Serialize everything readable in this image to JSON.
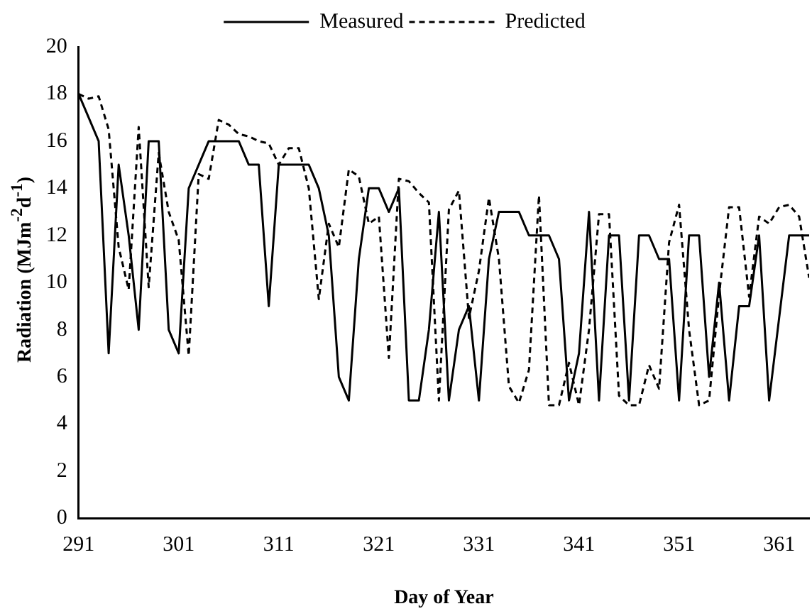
{
  "chart_data": {
    "type": "line",
    "xlabel": "Day of Year",
    "ylabel": "Radiation (MJm$^{-2}$d$^{-1}$)",
    "x": [
      291,
      292,
      293,
      294,
      295,
      296,
      297,
      298,
      299,
      300,
      301,
      302,
      303,
      304,
      305,
      306,
      307,
      308,
      309,
      310,
      311,
      312,
      313,
      314,
      315,
      316,
      317,
      318,
      319,
      320,
      321,
      322,
      323,
      324,
      325,
      326,
      327,
      328,
      329,
      330,
      331,
      332,
      333,
      334,
      335,
      336,
      337,
      338,
      339,
      340,
      341,
      342,
      343,
      344,
      345,
      346,
      347,
      348,
      349,
      350,
      351,
      352,
      353,
      354,
      355,
      356,
      357,
      358,
      359,
      360,
      361,
      362,
      363,
      364
    ],
    "series": [
      {
        "name": "Measured",
        "color": "#000000",
        "line_style": "solid",
        "values": [
          18,
          17,
          16,
          7,
          15,
          12,
          8,
          16,
          16,
          8,
          7,
          14,
          15,
          16,
          16,
          16,
          16,
          15,
          15,
          9,
          15,
          15,
          15,
          15,
          14,
          12,
          6,
          5,
          11,
          14,
          14,
          13,
          14,
          5,
          5,
          8,
          13,
          5,
          8,
          9,
          5,
          11,
          13,
          13,
          13,
          12,
          12,
          12,
          11,
          5,
          7,
          13,
          5,
          12,
          12,
          5,
          12,
          12,
          11,
          11,
          5,
          12,
          12,
          6,
          10,
          5,
          9,
          9,
          12,
          5,
          8.5,
          12,
          12,
          12
        ]
      },
      {
        "name": "Predicted",
        "color": "#000000",
        "line_style": "dashed",
        "values": [
          18,
          17.8,
          17.9,
          16.5,
          11.5,
          9.7,
          16.6,
          9.8,
          15.5,
          13,
          11.8,
          6.9,
          14.6,
          14.4,
          16.9,
          16.7,
          16.3,
          16.2,
          16,
          15.9,
          15,
          15.7,
          15.7,
          14,
          9.3,
          12.5,
          11.5,
          14.8,
          14.5,
          12.5,
          12.8,
          6.8,
          14.4,
          14.3,
          13.8,
          13.4,
          5,
          13.1,
          13.9,
          8.5,
          10.5,
          13.6,
          11,
          5.6,
          4.9,
          6.3,
          13.7,
          4.8,
          4.8,
          6.6,
          4.8,
          8,
          12.9,
          12.9,
          5.2,
          4.8,
          4.8,
          6.5,
          5.5,
          11.7,
          13.3,
          8,
          4.8,
          5,
          9.5,
          13.2,
          13.2,
          9.4,
          12.8,
          12.5,
          13.2,
          13.3,
          12.8,
          10.2
        ]
      }
    ],
    "xlim": [
      291,
      364
    ],
    "xticks": [
      291,
      301,
      311,
      321,
      331,
      341,
      351,
      361
    ],
    "ylim": [
      0,
      20
    ],
    "yticks": [
      0,
      2,
      4,
      6,
      8,
      10,
      12,
      14,
      16,
      18,
      20
    ],
    "grid": false,
    "legend": "top",
    "marker": "none"
  }
}
